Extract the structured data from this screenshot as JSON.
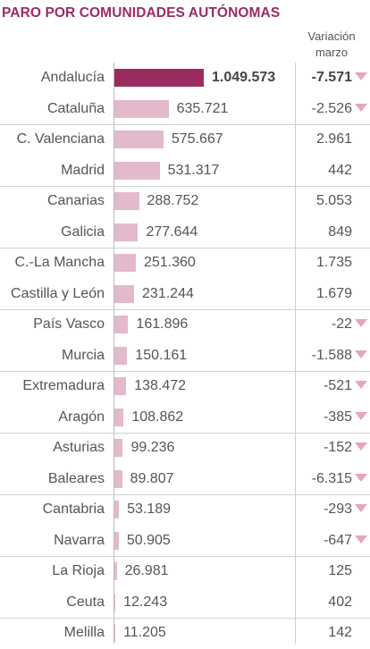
{
  "chart_data": {
    "type": "bar",
    "title": "PARO POR COMUNIDADES AUTÓNOMAS",
    "change_header": [
      "Variación",
      "marzo"
    ],
    "categories": [
      "Andalucía",
      "Cataluña",
      "C. Valenciana",
      "Madrid",
      "Canarias",
      "Galicia",
      "C.-La Mancha",
      "Castilla y León",
      "País Vasco",
      "Murcia",
      "Extremadura",
      "Aragón",
      "Asturias",
      "Baleares",
      "Cantabria",
      "Navarra",
      "La Rioja",
      "Ceuta",
      "Melilla"
    ],
    "values": [
      1049573,
      635721,
      575667,
      531317,
      288752,
      277644,
      251360,
      231244,
      161896,
      150161,
      138472,
      108862,
      99236,
      89807,
      53189,
      50905,
      26981,
      12243,
      11205
    ],
    "value_labels": [
      "1.049.573",
      "635.721",
      "575.667",
      "531.317",
      "288.752",
      "277.644",
      "251.360",
      "231.244",
      "161.896",
      "150.161",
      "138.472",
      "108.862",
      "99.236",
      "89.807",
      "53.189",
      "50.905",
      "26.981",
      "12.243",
      "11.205"
    ],
    "changes": [
      -7571,
      -2526,
      2961,
      442,
      5053,
      849,
      1735,
      1679,
      -22,
      -1588,
      -521,
      -385,
      -152,
      -6315,
      -293,
      -647,
      125,
      402,
      142
    ],
    "change_labels": [
      "-7.571",
      "-2.526",
      "2.961",
      "442",
      "5.053",
      "849",
      "1.735",
      "1.679",
      "-22",
      "-1.588",
      "-521",
      "-385",
      "-152",
      "-6.315",
      "-293",
      "-647",
      "125",
      "402",
      "142"
    ],
    "highlight": "Andalucía",
    "colors": {
      "title": "#9b2c62",
      "highlight_bar": "#9b2c62",
      "bar": "#e3b9cc",
      "decrease_arrow": "#e8a5bd"
    }
  }
}
